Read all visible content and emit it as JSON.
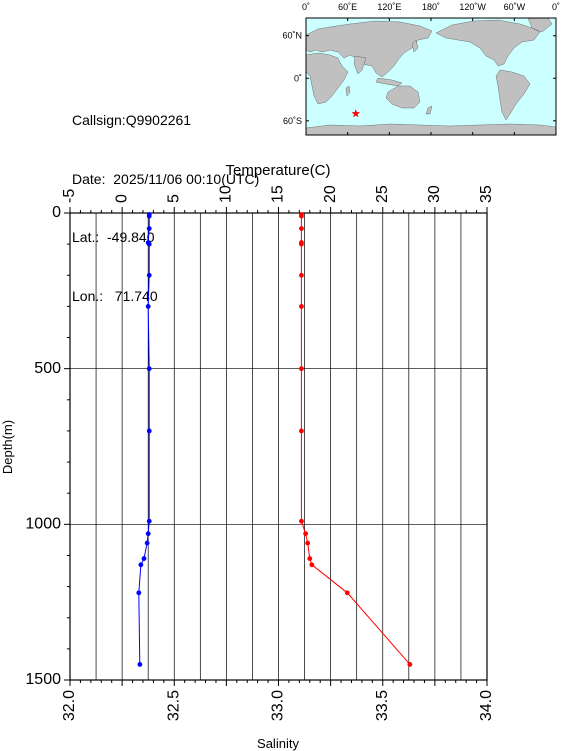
{
  "info": {
    "callsign": "Callsign:Q9902261",
    "date": "Date:  2025/11/06 00:10(UTC)",
    "lat": "Lat.:  -49.840",
    "lon": "Lon.:   71.740"
  },
  "map": {
    "lon_labels": [
      "0˚",
      "60˚E",
      "120˚E",
      "180˚",
      "120˚W",
      "60˚W",
      "0˚"
    ],
    "lat_labels": [
      "60˚N",
      "0˚",
      "60˚S"
    ],
    "float_position": {
      "lat": -49.84,
      "lon": 71.74
    },
    "colors": {
      "ocean": "#ccffff",
      "land": "#c0c0c0",
      "marker": "#ff0000"
    }
  },
  "chart_data": {
    "type": "line",
    "ylabel": "Depth(m)",
    "ylim": [
      1500,
      0
    ],
    "yticks": [
      "0",
      "500",
      "1000",
      "1500"
    ],
    "grid": true,
    "temperature_axis": {
      "label": "Temperature(C)",
      "position": "top",
      "range": [
        -5,
        35
      ],
      "ticks": [
        "-5",
        "0",
        "5",
        "10",
        "15",
        "20",
        "25",
        "30",
        "35"
      ]
    },
    "salinity_axis": {
      "label": "Salinity",
      "position": "bottom",
      "range": [
        32.0,
        34.0
      ],
      "ticks": [
        "32.0",
        "32.5",
        "33.0",
        "33.5",
        "34.0"
      ]
    },
    "series": [
      {
        "variable": "temperature",
        "color": "#0000ff",
        "points": [
          {
            "depth": 5,
            "value": 2.6
          },
          {
            "depth": 10,
            "value": 2.6
          },
          {
            "depth": 50,
            "value": 2.6
          },
          {
            "depth": 95,
            "value": 2.5
          },
          {
            "depth": 100,
            "value": 2.6
          },
          {
            "depth": 200,
            "value": 2.6
          },
          {
            "depth": 300,
            "value": 2.5
          },
          {
            "depth": 500,
            "value": 2.6
          },
          {
            "depth": 700,
            "value": 2.6
          },
          {
            "depth": 990,
            "value": 2.6
          },
          {
            "depth": 1030,
            "value": 2.5
          },
          {
            "depth": 1060,
            "value": 2.4
          },
          {
            "depth": 1110,
            "value": 2.1
          },
          {
            "depth": 1130,
            "value": 1.8
          },
          {
            "depth": 1220,
            "value": 1.6
          },
          {
            "depth": 1450,
            "value": 1.7
          }
        ]
      },
      {
        "variable": "salinity",
        "color": "#ff0000",
        "points": [
          {
            "depth": 5,
            "value": 33.11
          },
          {
            "depth": 10,
            "value": 33.11
          },
          {
            "depth": 50,
            "value": 33.11
          },
          {
            "depth": 95,
            "value": 33.11
          },
          {
            "depth": 100,
            "value": 33.11
          },
          {
            "depth": 200,
            "value": 33.11
          },
          {
            "depth": 300,
            "value": 33.11
          },
          {
            "depth": 500,
            "value": 33.11
          },
          {
            "depth": 700,
            "value": 33.11
          },
          {
            "depth": 990,
            "value": 33.11
          },
          {
            "depth": 1030,
            "value": 33.13
          },
          {
            "depth": 1060,
            "value": 33.14
          },
          {
            "depth": 1110,
            "value": 33.15
          },
          {
            "depth": 1130,
            "value": 33.16
          },
          {
            "depth": 1220,
            "value": 33.33
          },
          {
            "depth": 1450,
            "value": 33.63
          }
        ]
      }
    ]
  }
}
